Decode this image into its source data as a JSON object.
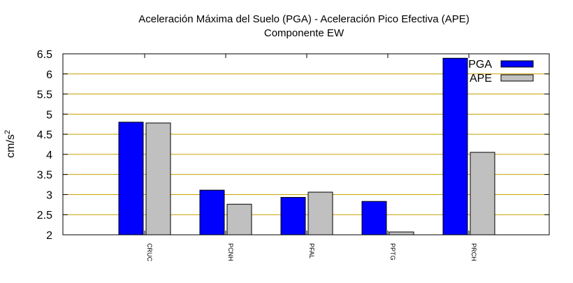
{
  "chart_data": {
    "type": "bar",
    "title": "Aceleración Máxima del Suelo (PGA) -  Aceleración Pico Efectiva (APE)",
    "subtitle": "Componente EW",
    "xlabel": "",
    "ylabel": "cm/s",
    "ylabel_sup": "2",
    "ylim": [
      2,
      6.5
    ],
    "yticks": [
      "2",
      "2.5",
      "3",
      "3.5",
      "4",
      "4.5",
      "5",
      "5.5",
      "6",
      "6.5"
    ],
    "grid": true,
    "legend_position": "top-right",
    "categories": [
      "CRUC",
      "PCNH",
      "PFAL",
      "PPTG",
      "PRCH"
    ],
    "series": [
      {
        "name": "PGA",
        "color": "#0000ff",
        "values": [
          4.8,
          3.11,
          2.93,
          2.83,
          6.39
        ]
      },
      {
        "name": "APE",
        "color": "#c0c0c0",
        "values": [
          4.78,
          2.76,
          3.06,
          2.07,
          4.05
        ]
      }
    ],
    "grid_color": "#c8a000"
  }
}
